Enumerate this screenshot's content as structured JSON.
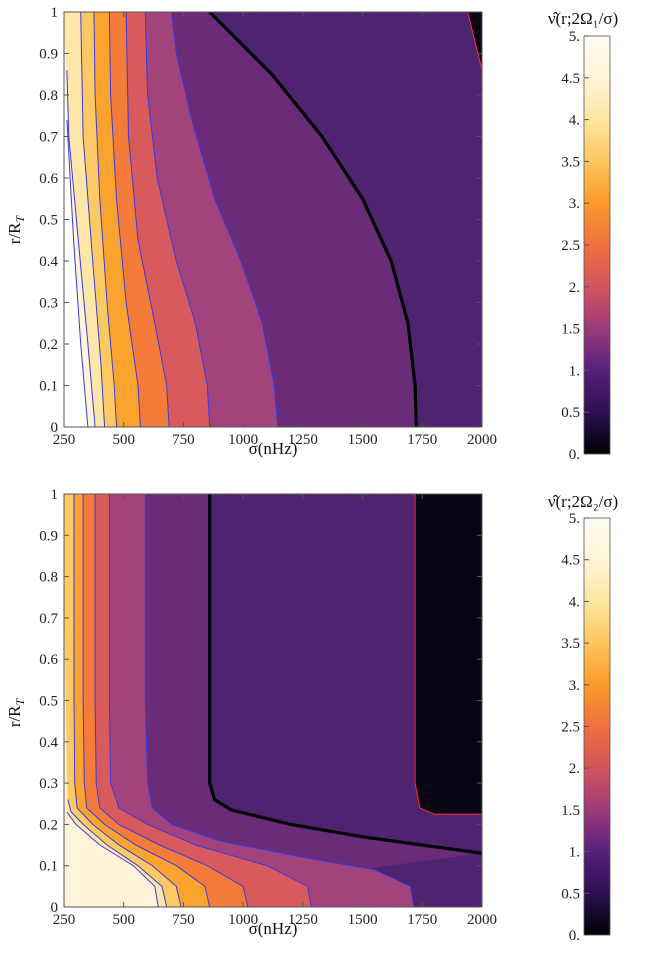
{
  "chart_data": [
    {
      "type": "heatmap",
      "plot_kind": "contour",
      "xlabel": "σ(nHz)",
      "ylabel_main": "r/R",
      "ylabel_sub": "T",
      "colorbar_title": "ν̂(r;2Ω₁/σ)",
      "xlim": [
        250,
        2000
      ],
      "ylim": [
        0,
        1
      ],
      "x_ticks": [
        "250",
        "500",
        "750",
        "1000",
        "1250",
        "1500",
        "1750",
        "2000"
      ],
      "y_ticks": [
        "0",
        "0.1",
        "0.2",
        "0.3",
        "0.4",
        "0.5",
        "0.6",
        "0.7",
        "0.8",
        "0.9",
        "1"
      ],
      "colorbar_ticks": [
        "0.",
        "0.5",
        "1.",
        "1.5",
        "2.",
        "2.5",
        "3.",
        "3.5",
        "4.",
        "4.5",
        "5."
      ],
      "colorbar_range": [
        0,
        5
      ],
      "contour_levels": [
        0.5,
        1.0,
        1.5,
        2.0,
        2.5,
        3.0,
        3.5,
        4.0,
        4.5,
        5.0
      ],
      "highlighted_contour": 1.0,
      "contour_line_color": "#3a3adf",
      "highlight_line_color": "#000000",
      "edge_line_color": "#ff2a2a",
      "contours_sigma_at_r": [
        {
          "level": 0.5,
          "points": [
            [
              1940,
              1.0
            ],
            [
              2000,
              0.86
            ]
          ]
        },
        {
          "level": 1.0,
          "points": [
            [
              1725,
              0.0
            ],
            [
              1720,
              0.1
            ],
            [
              1690,
              0.25
            ],
            [
              1620,
              0.4
            ],
            [
              1500,
              0.55
            ],
            [
              1330,
              0.7
            ],
            [
              1120,
              0.85
            ],
            [
              860,
              1.0
            ]
          ]
        },
        {
          "level": 1.5,
          "points": [
            [
              1145,
              0.0
            ],
            [
              1130,
              0.1
            ],
            [
              1080,
              0.25
            ],
            [
              990,
              0.4
            ],
            [
              880,
              0.55
            ],
            [
              780,
              0.75
            ],
            [
              720,
              0.9
            ],
            [
              700,
              1.0
            ]
          ]
        },
        {
          "level": 2.0,
          "points": [
            [
              860,
              0.0
            ],
            [
              850,
              0.1
            ],
            [
              800,
              0.25
            ],
            [
              720,
              0.4
            ],
            [
              640,
              0.6
            ],
            [
              600,
              0.8
            ],
            [
              590,
              1.0
            ]
          ]
        },
        {
          "level": 2.5,
          "points": [
            [
              690,
              0.0
            ],
            [
              680,
              0.1
            ],
            [
              630,
              0.25
            ],
            [
              560,
              0.45
            ],
            [
              520,
              0.7
            ],
            [
              510,
              1.0
            ]
          ]
        },
        {
          "level": 3.0,
          "points": [
            [
              570,
              0.0
            ],
            [
              560,
              0.1
            ],
            [
              510,
              0.3
            ],
            [
              470,
              0.55
            ],
            [
              445,
              0.8
            ],
            [
              440,
              1.0
            ]
          ]
        },
        {
          "level": 3.5,
          "points": [
            [
              470,
              0.0
            ],
            [
              460,
              0.1
            ],
            [
              430,
              0.3
            ],
            [
              400,
              0.55
            ],
            [
              380,
              0.8
            ],
            [
              375,
              1.0
            ]
          ]
        },
        {
          "level": 4.0,
          "points": [
            [
              420,
              0.0
            ],
            [
              405,
              0.15
            ],
            [
              370,
              0.4
            ],
            [
              330,
              0.7
            ],
            [
              320,
              1.0
            ]
          ]
        },
        {
          "level": 4.5,
          "points": [
            [
              380,
              0.0
            ],
            [
              350,
              0.2
            ],
            [
              310,
              0.45
            ],
            [
              270,
              0.7
            ],
            [
              262,
              0.86
            ]
          ]
        },
        {
          "level": 5.0,
          "points": [
            [
              350,
              0.0
            ],
            [
              320,
              0.2
            ],
            [
              290,
              0.45
            ],
            [
              262,
              0.74
            ]
          ]
        }
      ]
    },
    {
      "type": "heatmap",
      "plot_kind": "contour",
      "xlabel": "σ(nHz)",
      "ylabel_main": "r/R",
      "ylabel_sub": "T",
      "colorbar_title": "ν̂(r;2Ω₂/σ)",
      "xlim": [
        250,
        2000
      ],
      "ylim": [
        0,
        1
      ],
      "x_ticks": [
        "250",
        "500",
        "750",
        "1000",
        "1250",
        "1500",
        "1750",
        "2000"
      ],
      "y_ticks": [
        "0",
        "0.1",
        "0.2",
        "0.3",
        "0.4",
        "0.5",
        "0.6",
        "0.7",
        "0.8",
        "0.9",
        "1"
      ],
      "colorbar_ticks": [
        "0.",
        "0.5",
        "1.",
        "1.5",
        "2.",
        "2.5",
        "3.",
        "3.5",
        "4.",
        "4.5",
        "5."
      ],
      "colorbar_range": [
        0,
        5
      ],
      "contour_levels": [
        0.5,
        1.0,
        1.5,
        2.0,
        2.5,
        3.0,
        3.5,
        4.0,
        4.5,
        5.0
      ],
      "highlighted_contour": 1.0,
      "contour_line_color": "#3a3adf",
      "highlight_line_color": "#000000",
      "edge_line_color": "#ff2a2a",
      "contours_sigma_at_r": [
        {
          "level": 0.5,
          "points": [
            [
              1720,
              1.0
            ],
            [
              1720,
              0.3
            ],
            [
              1740,
              0.24
            ],
            [
              1800,
              0.225
            ],
            [
              2000,
              0.225
            ]
          ]
        },
        {
          "level": 1.0,
          "points": [
            [
              860,
              1.0
            ],
            [
              860,
              0.3
            ],
            [
              880,
              0.26
            ],
            [
              950,
              0.235
            ],
            [
              1200,
              0.2
            ],
            [
              1500,
              0.17
            ],
            [
              2000,
              0.13
            ]
          ]
        },
        {
          "level": 1.5,
          "points": [
            [
              1715,
              0.0
            ],
            [
              1700,
              0.05
            ],
            [
              1550,
              0.09
            ],
            [
              1250,
              0.12
            ],
            [
              900,
              0.16
            ],
            [
              700,
              0.2
            ],
            [
              620,
              0.24
            ],
            [
              600,
              0.3
            ],
            [
              590,
              0.5
            ],
            [
              590,
              1.0
            ]
          ]
        },
        {
          "level": 2.0,
          "points": [
            [
              1285,
              0.0
            ],
            [
              1270,
              0.05
            ],
            [
              1100,
              0.1
            ],
            [
              800,
              0.15
            ],
            [
              600,
              0.2
            ],
            [
              480,
              0.24
            ],
            [
              445,
              0.3
            ],
            [
              440,
              0.5
            ],
            [
              440,
              1.0
            ]
          ]
        },
        {
          "level": 2.5,
          "points": [
            [
              1020,
              0.0
            ],
            [
              1000,
              0.05
            ],
            [
              850,
              0.1
            ],
            [
              650,
              0.15
            ],
            [
              480,
              0.2
            ],
            [
              400,
              0.24
            ],
            [
              385,
              0.3
            ],
            [
              380,
              0.5
            ],
            [
              380,
              1.0
            ]
          ]
        },
        {
          "level": 3.0,
          "points": [
            [
              860,
              0.0
            ],
            [
              840,
              0.05
            ],
            [
              720,
              0.1
            ],
            [
              550,
              0.15
            ],
            [
              420,
              0.2
            ],
            [
              345,
              0.24
            ],
            [
              335,
              0.3
            ],
            [
              330,
              0.5
            ],
            [
              330,
              1.0
            ]
          ]
        },
        {
          "level": 3.5,
          "points": [
            [
              740,
              0.0
            ],
            [
              720,
              0.05
            ],
            [
              620,
              0.1
            ],
            [
              480,
              0.15
            ],
            [
              370,
              0.2
            ],
            [
              305,
              0.24
            ],
            [
              295,
              0.3
            ],
            [
              292,
              0.5
            ],
            [
              292,
              1.0
            ]
          ]
        },
        {
          "level": 4.0,
          "points": [
            [
              680,
              0.0
            ],
            [
              660,
              0.05
            ],
            [
              560,
              0.1
            ],
            [
              430,
              0.15
            ],
            [
              330,
              0.2
            ],
            [
              280,
              0.23
            ],
            [
              266,
              0.26
            ]
          ]
        },
        {
          "level": 4.5,
          "points": [
            [
              645,
              0.0
            ],
            [
              630,
              0.05
            ],
            [
              540,
              0.1
            ],
            [
              400,
              0.15
            ],
            [
              300,
              0.2
            ],
            [
              262,
              0.23
            ]
          ]
        }
      ]
    }
  ]
}
